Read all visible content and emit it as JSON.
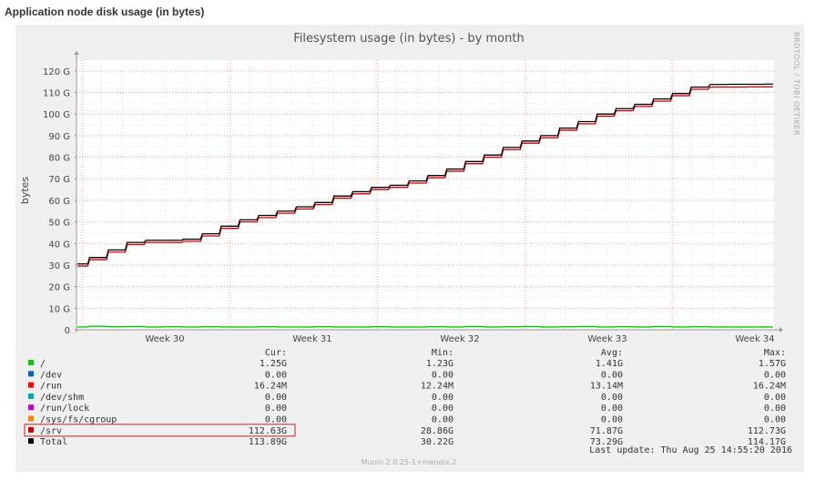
{
  "page": {
    "title": "Application node disk usage (in bytes)"
  },
  "chart_data": {
    "type": "line",
    "title": "Filesystem usage (in bytes) - by month",
    "ylabel": "bytes",
    "side_text": "RRDTOOL / TOBI OETIKER",
    "ylim": [
      0,
      125
    ],
    "yticks": [
      "0",
      "10 G",
      "20 G",
      "30 G",
      "40 G",
      "50 G",
      "60 G",
      "70 G",
      "80 G",
      "90 G",
      "100 G",
      "110 G",
      "120 G"
    ],
    "categories": [
      "Week 30",
      "Week 31",
      "Week 32",
      "Week 33",
      "Week 34"
    ],
    "grid": true,
    "x": [
      0,
      1,
      2,
      3,
      4,
      5,
      6,
      7,
      8,
      9,
      10,
      11,
      12,
      13,
      14,
      15,
      16,
      17,
      18,
      19,
      20,
      21,
      22,
      23,
      24,
      25,
      26,
      27,
      28,
      29,
      30,
      31,
      32,
      33,
      34,
      35,
      36,
      37
    ],
    "series": [
      {
        "name": "/",
        "color": "#00cc00",
        "values": [
          1.3,
          1.6,
          1.4,
          1.5,
          1.3,
          1.4,
          1.3,
          1.4,
          1.3,
          1.3,
          1.4,
          1.3,
          1.3,
          1.4,
          1.3,
          1.3,
          1.4,
          1.3,
          1.3,
          1.4,
          1.3,
          1.5,
          1.3,
          1.4,
          1.5,
          1.3,
          1.4,
          1.5,
          1.3,
          1.4,
          1.3,
          1.5,
          1.3,
          1.4,
          1.3,
          1.3,
          1.3,
          1.3
        ]
      },
      {
        "name": "/srv",
        "color": "#cc0000",
        "values": [
          29.5,
          32.5,
          36,
          39.5,
          40.5,
          40.5,
          41,
          43.5,
          47,
          50,
          52,
          54,
          56,
          58,
          61,
          63,
          65,
          66,
          68,
          70.5,
          73.5,
          77,
          80,
          83.5,
          86.5,
          89,
          92.5,
          95.5,
          99,
          101.5,
          103.5,
          106,
          108.5,
          111.5,
          112.5,
          112.5,
          112.6,
          112.6
        ]
      },
      {
        "name": "Total",
        "color": "#000000",
        "values": [
          30.5,
          33.5,
          37,
          40.5,
          41.5,
          41.5,
          42,
          44.5,
          48,
          51,
          53,
          55,
          57,
          59,
          62,
          64,
          66,
          67,
          69,
          71.5,
          74.5,
          78,
          81,
          84.5,
          87.5,
          90,
          93.5,
          96.5,
          100,
          102.5,
          104.5,
          107,
          109.5,
          112.5,
          113.7,
          113.8,
          113.8,
          113.9
        ]
      }
    ],
    "legend_headers": {
      "cur": "Cur:",
      "min": "Min:",
      "avg": "Avg:",
      "max": "Max:"
    },
    "legend": [
      {
        "label": "/",
        "color": "#00cc00",
        "cur": "1.25G",
        "min": "1.23G",
        "avg": "1.41G",
        "max": "1.57G",
        "highlight": false
      },
      {
        "label": "/dev",
        "color": "#0066b3",
        "cur": "0.00",
        "min": "0.00",
        "avg": "0.00",
        "max": "0.00",
        "highlight": false
      },
      {
        "label": "/run",
        "color": "#ff0000",
        "cur": "16.24M",
        "min": "12.24M",
        "avg": "13.14M",
        "max": "16.24M",
        "highlight": false
      },
      {
        "label": "/dev/shm",
        "color": "#00aaaa",
        "cur": "0.00",
        "min": "0.00",
        "avg": "0.00",
        "max": "0.00",
        "highlight": false
      },
      {
        "label": "/run/lock",
        "color": "#cc00cc",
        "cur": "0.00",
        "min": "0.00",
        "avg": "0.00",
        "max": "0.00",
        "highlight": false
      },
      {
        "label": "/sys/fs/cgroup",
        "color": "#ff8000",
        "cur": "0.00",
        "min": "0.00",
        "avg": "0.00",
        "max": "0.00",
        "highlight": false
      },
      {
        "label": "/srv",
        "color": "#cc0000",
        "cur": "112.63G",
        "min": "28.86G",
        "avg": "71.87G",
        "max": "112.73G",
        "highlight": true
      },
      {
        "label": "Total",
        "color": "#000000",
        "cur": "113.89G",
        "min": "30.22G",
        "avg": "73.29G",
        "max": "114.17G",
        "highlight": false
      }
    ],
    "last_update": "Last update:  Thu Aug 25 14:55:20 2016",
    "footer": "Munin 2.0.25-1+mendix.2"
  }
}
